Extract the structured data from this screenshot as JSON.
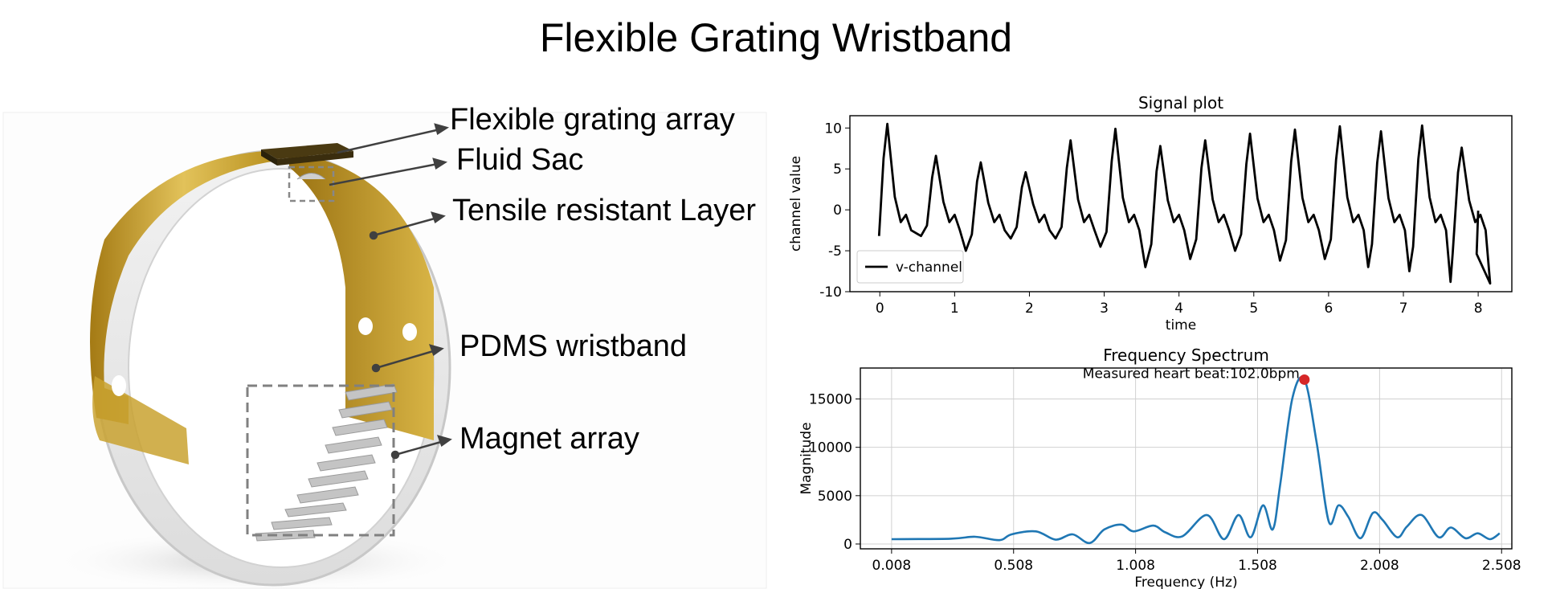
{
  "title": "Flexible Grating Wristband",
  "callouts": {
    "grating": "Flexible grating array",
    "fluid": "Fluid Sac",
    "tensile": "Tensile resistant Layer",
    "pdms": "PDMS wristband",
    "magnet": "Magnet array"
  },
  "colors": {
    "gold": "#c9a230",
    "signal": "#000000",
    "spectrum": "#1f77b4",
    "peak": "#d62728"
  },
  "chart_data": [
    {
      "type": "line",
      "title": "Signal plot",
      "xlabel": "time",
      "ylabel": "channel value",
      "xlim": [
        -0.4,
        8.45
      ],
      "ylim": [
        -10,
        11.5
      ],
      "xticks": [
        0,
        1,
        2,
        3,
        4,
        5,
        6,
        7,
        8
      ],
      "yticks": [
        -10,
        -5,
        0,
        5,
        10
      ],
      "grid": false,
      "legend": "lower-left",
      "series": [
        {
          "name": "v-channel",
          "beats_t": [
            0.0,
            0.65,
            1.25,
            1.85,
            2.45,
            3.05,
            3.65,
            4.25,
            4.85,
            5.45,
            6.05,
            6.6,
            7.15,
            7.68
          ],
          "beats_peak": [
            10.5,
            6.6,
            5.8,
            4.6,
            8.5,
            9.9,
            7.8,
            8.5,
            9.3,
            9.8,
            10.2,
            9.6,
            10.3,
            7.6
          ],
          "beats_trough": [
            -3.2,
            -5.0,
            -3.5,
            -3.5,
            -4.5,
            -7.0,
            -6.0,
            -5.0,
            -6.2,
            -6.0,
            -7.0,
            -7.5,
            -8.8,
            -9.0
          ],
          "end": [
            8.0,
            -0.1
          ]
        }
      ]
    },
    {
      "type": "line",
      "title": "Frequency Spectrum",
      "xlabel": "Frequency (Hz)",
      "ylabel": "Magnitude",
      "xlim": [
        -0.12,
        2.55
      ],
      "ylim": [
        -500,
        18200
      ],
      "xticks": [
        0.008,
        0.508,
        1.008,
        1.508,
        2.008,
        2.508
      ],
      "xticklabels": [
        "0.008",
        "0.508",
        "1.008",
        "1.508",
        "2.008",
        "2.508"
      ],
      "yticks": [
        0,
        5000,
        10000,
        15000
      ],
      "grid": true,
      "annotation": "Measured heart beat:102.0bpm",
      "peak": {
        "x": 1.7,
        "y": 17000
      },
      "x": [
        0.008,
        0.25,
        0.35,
        0.45,
        0.5,
        0.6,
        0.68,
        0.75,
        0.82,
        0.88,
        0.95,
        1.0,
        1.08,
        1.13,
        1.2,
        1.3,
        1.37,
        1.43,
        1.48,
        1.53,
        1.57,
        1.6,
        1.65,
        1.7,
        1.75,
        1.8,
        1.84,
        1.88,
        1.93,
        1.98,
        2.02,
        2.08,
        2.12,
        2.18,
        2.25,
        2.3,
        2.36,
        2.41,
        2.46,
        2.5
      ],
      "values": [
        500,
        550,
        750,
        400,
        1000,
        1300,
        450,
        1000,
        100,
        1500,
        2000,
        1300,
        1900,
        1200,
        800,
        3000,
        500,
        3000,
        700,
        4000,
        1500,
        6000,
        15000,
        17000,
        10500,
        2300,
        4000,
        2800,
        600,
        3200,
        2500,
        700,
        1800,
        3000,
        700,
        1700,
        600,
        1100,
        500,
        1100
      ]
    }
  ]
}
